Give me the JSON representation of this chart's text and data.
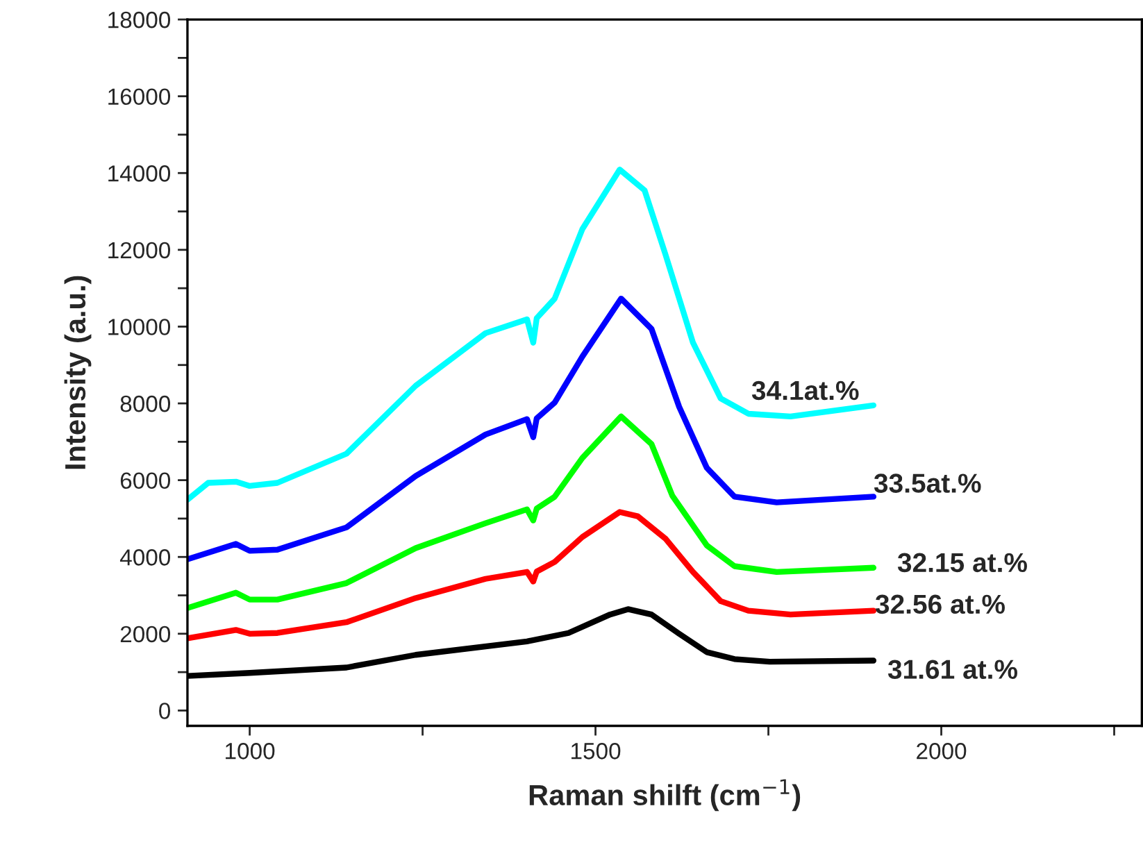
{
  "chart_data": {
    "type": "line",
    "xlabel": "Raman shilft (cm$^{−1}$)",
    "ylabel": "Intensity (a.u.)",
    "xlim": [
      910,
      2290
    ],
    "ylim": [
      -400,
      18000
    ],
    "xticks": [
      1000,
      {
        "value": 1250,
        "label": null
      },
      1500,
      {
        "value": 1750,
        "label": null
      },
      2000,
      {
        "value": 2250,
        "label": null
      }
    ],
    "yticks": [
      0,
      {
        "value": 1000,
        "label": null
      },
      2000,
      {
        "value": 3000,
        "label": null
      },
      4000,
      {
        "value": 5000,
        "label": null
      },
      6000,
      {
        "value": 7000,
        "label": null
      },
      8000,
      {
        "value": 9000,
        "label": null
      },
      10000,
      {
        "value": 11000,
        "label": null
      },
      12000,
      {
        "value": 13000,
        "label": null
      },
      14000,
      {
        "value": 15000,
        "label": null
      },
      16000,
      {
        "value": 17000,
        "label": null
      },
      18000
    ],
    "grid": false,
    "legend": false,
    "series": [
      {
        "name": "31.61 at.%",
        "color": "#000000",
        "x": [
          910,
          1000,
          1140,
          1240,
          1401,
          1461,
          1521,
          1547,
          1581,
          1621,
          1661,
          1701,
          1752,
          1902
        ],
        "values": [
          900,
          980,
          1120,
          1450,
          1800,
          2020,
          2500,
          2640,
          2500,
          2000,
          1520,
          1340,
          1270,
          1300
        ]
      },
      {
        "name": "32.56 at.%",
        "color": "#ff0000",
        "x": [
          910,
          980,
          1000,
          1040,
          1140,
          1240,
          1341,
          1401,
          1410,
          1415,
          1441,
          1481,
          1535,
          1561,
          1601,
          1641,
          1681,
          1721,
          1782,
          1902
        ],
        "values": [
          1880,
          2100,
          2000,
          2020,
          2300,
          2930,
          3430,
          3610,
          3360,
          3620,
          3870,
          4520,
          5170,
          5060,
          4480,
          3610,
          2850,
          2600,
          2500,
          2600
        ]
      },
      {
        "name": "32.15 at.%",
        "color": "#00ff00",
        "x": [
          910,
          980,
          1000,
          1040,
          1140,
          1240,
          1341,
          1401,
          1410,
          1415,
          1441,
          1481,
          1537,
          1581,
          1611,
          1661,
          1701,
          1762,
          1902
        ],
        "values": [
          2670,
          3070,
          2890,
          2890,
          3320,
          4230,
          4880,
          5240,
          4950,
          5260,
          5570,
          6580,
          7660,
          6940,
          5600,
          4300,
          3760,
          3610,
          3720
        ]
      },
      {
        "name": "33.5at.%",
        "color": "#0000ff",
        "x": [
          910,
          980,
          1000,
          1040,
          1140,
          1240,
          1341,
          1401,
          1410,
          1415,
          1441,
          1481,
          1537,
          1581,
          1621,
          1661,
          1701,
          1762,
          1902
        ],
        "values": [
          3940,
          4340,
          4160,
          4190,
          4770,
          6110,
          7190,
          7590,
          7120,
          7610,
          8020,
          9220,
          10730,
          9940,
          7910,
          6320,
          5570,
          5420,
          5570
        ]
      },
      {
        "name": "34.1at.%",
        "color": "#00ffff",
        "x": [
          910,
          940,
          980,
          1000,
          1040,
          1140,
          1240,
          1341,
          1401,
          1410,
          1415,
          1441,
          1481,
          1535,
          1571,
          1601,
          1641,
          1681,
          1721,
          1782,
          1902
        ],
        "values": [
          5490,
          5930,
          5960,
          5850,
          5930,
          6690,
          8460,
          9830,
          10190,
          9580,
          10220,
          10730,
          12540,
          14090,
          13550,
          11890,
          9580,
          8130,
          7730,
          7660,
          7950
        ]
      }
    ]
  }
}
